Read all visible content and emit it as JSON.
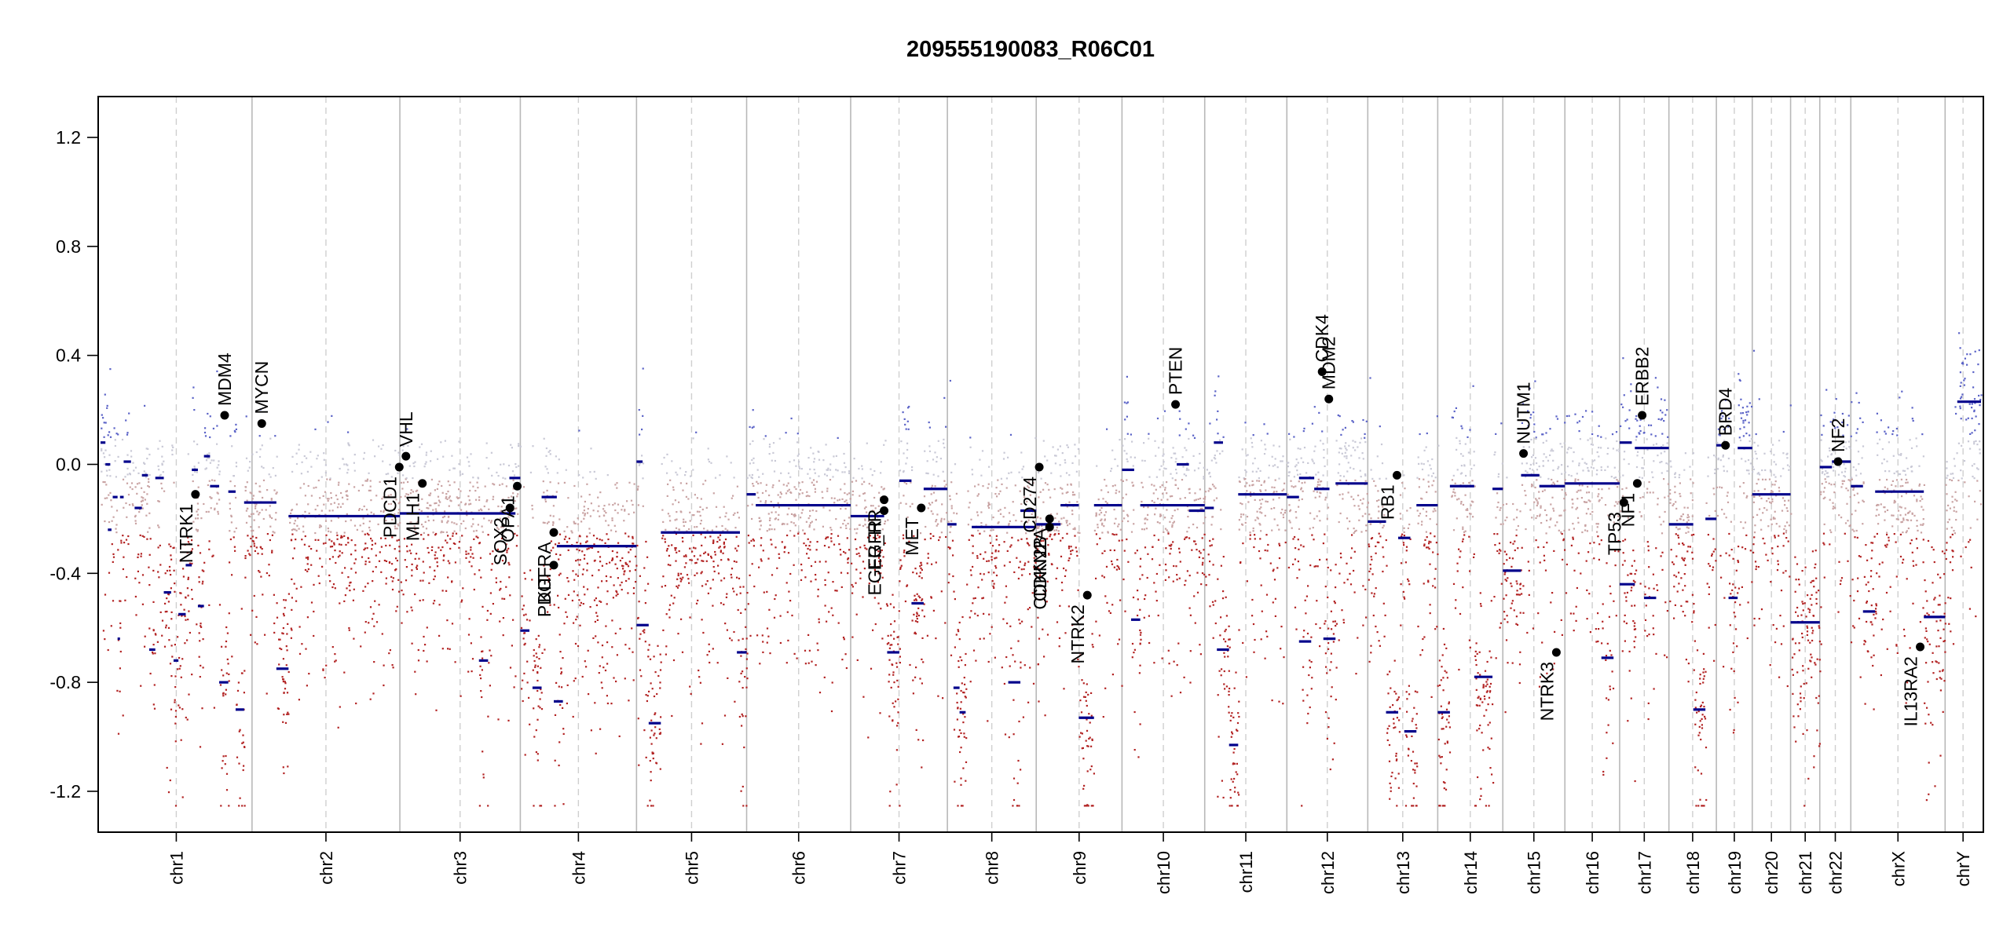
{
  "chart_data": {
    "type": "scatter",
    "title": "209555190083_R06C01",
    "xlabel": "",
    "ylabel": "",
    "ylim": [
      -1.35,
      1.35
    ],
    "yticks": [
      -1.2,
      -0.8,
      -0.4,
      0.0,
      0.4,
      0.8,
      1.2
    ],
    "ytick_labels": [
      "-1.2",
      "-0.8",
      "-0.4",
      "0.0",
      "0.4",
      "0.8",
      "1.2"
    ],
    "x_units": "genome position (Mb, cumulative)",
    "chromosomes": [
      {
        "name": "chr1",
        "length": 249
      },
      {
        "name": "chr2",
        "length": 243
      },
      {
        "name": "chr3",
        "length": 198
      },
      {
        "name": "chr4",
        "length": 191
      },
      {
        "name": "chr5",
        "length": 181
      },
      {
        "name": "chr6",
        "length": 171
      },
      {
        "name": "chr7",
        "length": 159
      },
      {
        "name": "chr8",
        "length": 146
      },
      {
        "name": "chr9",
        "length": 141
      },
      {
        "name": "chr10",
        "length": 136
      },
      {
        "name": "chr11",
        "length": 135
      },
      {
        "name": "chr12",
        "length": 133
      },
      {
        "name": "chr13",
        "length": 115
      },
      {
        "name": "chr14",
        "length": 107
      },
      {
        "name": "chr15",
        "length": 102
      },
      {
        "name": "chr16",
        "length": 90
      },
      {
        "name": "chr17",
        "length": 81
      },
      {
        "name": "chr18",
        "length": 78
      },
      {
        "name": "chr19",
        "length": 59
      },
      {
        "name": "chr20",
        "length": 63
      },
      {
        "name": "chr21",
        "length": 48
      },
      {
        "name": "chr22",
        "length": 51
      },
      {
        "name": "chrX",
        "length": 155
      },
      {
        "name": "chrY",
        "length": 59
      }
    ],
    "segments": [
      {
        "chr": "chr1",
        "start": 0,
        "end": 8,
        "value": 0.08
      },
      {
        "chr": "chr1",
        "start": 8,
        "end": 16,
        "value": 0.0
      },
      {
        "chr": "chr1",
        "start": 12,
        "end": 18,
        "value": -0.24
      },
      {
        "chr": "chr1",
        "start": 20,
        "end": 28,
        "value": -0.12
      },
      {
        "chr": "chr1",
        "start": 28,
        "end": 32,
        "value": -0.64
      },
      {
        "chr": "chr1",
        "start": 32,
        "end": 38,
        "value": -0.12
      },
      {
        "chr": "chr1",
        "start": 38,
        "end": 50,
        "value": 0.01
      },
      {
        "chr": "chr1",
        "start": 56,
        "end": 68,
        "value": -0.16
      },
      {
        "chr": "chr1",
        "start": 68,
        "end": 78,
        "value": -0.04
      },
      {
        "chr": "chr1",
        "start": 80,
        "end": 90,
        "value": -0.68
      },
      {
        "chr": "chr1",
        "start": 90,
        "end": 104,
        "value": -0.05
      },
      {
        "chr": "chr1",
        "start": 104,
        "end": 116,
        "value": -0.47
      },
      {
        "chr": "chr1",
        "start": 120,
        "end": 128,
        "value": -0.72
      },
      {
        "chr": "chr1",
        "start": 128,
        "end": 140,
        "value": -0.55
      },
      {
        "chr": "chr1",
        "start": 140,
        "end": 150,
        "value": -0.37
      },
      {
        "chr": "chr1",
        "start": 150,
        "end": 160,
        "value": -0.02
      },
      {
        "chr": "chr1",
        "start": 160,
        "end": 170,
        "value": -0.52
      },
      {
        "chr": "chr1",
        "start": 170,
        "end": 180,
        "value": 0.03
      },
      {
        "chr": "chr1",
        "start": 180,
        "end": 195,
        "value": -0.08
      },
      {
        "chr": "chr1",
        "start": 195,
        "end": 210,
        "value": -0.8
      },
      {
        "chr": "chr1",
        "start": 210,
        "end": 222,
        "value": -0.1
      },
      {
        "chr": "chr1",
        "start": 222,
        "end": 236,
        "value": -0.9
      },
      {
        "chr": "chr1",
        "start": 236,
        "end": 249,
        "value": -0.14
      },
      {
        "chr": "chr2",
        "start": 0,
        "end": 40,
        "value": -0.14
      },
      {
        "chr": "chr2",
        "start": 40,
        "end": 60,
        "value": -0.75
      },
      {
        "chr": "chr2",
        "start": 60,
        "end": 243,
        "value": -0.19
      },
      {
        "chr": "chr3",
        "start": 0,
        "end": 190,
        "value": -0.18
      },
      {
        "chr": "chr3",
        "start": 130,
        "end": 145,
        "value": -0.72
      },
      {
        "chr": "chr3",
        "start": 180,
        "end": 198,
        "value": -0.05
      },
      {
        "chr": "chr4",
        "start": 0,
        "end": 15,
        "value": -0.61
      },
      {
        "chr": "chr4",
        "start": 20,
        "end": 35,
        "value": -0.82
      },
      {
        "chr": "chr4",
        "start": 35,
        "end": 60,
        "value": -0.12
      },
      {
        "chr": "chr4",
        "start": 55,
        "end": 70,
        "value": -0.87
      },
      {
        "chr": "chr4",
        "start": 60,
        "end": 191,
        "value": -0.3
      },
      {
        "chr": "chr5",
        "start": 0,
        "end": 10,
        "value": 0.01
      },
      {
        "chr": "chr5",
        "start": 0,
        "end": 20,
        "value": -0.59
      },
      {
        "chr": "chr5",
        "start": 20,
        "end": 40,
        "value": -0.95
      },
      {
        "chr": "chr5",
        "start": 40,
        "end": 170,
        "value": -0.25
      },
      {
        "chr": "chr5",
        "start": 165,
        "end": 181,
        "value": -0.69
      },
      {
        "chr": "chr6",
        "start": 0,
        "end": 15,
        "value": -0.11
      },
      {
        "chr": "chr6",
        "start": 15,
        "end": 171,
        "value": -0.15
      },
      {
        "chr": "chr7",
        "start": 0,
        "end": 55,
        "value": -0.19
      },
      {
        "chr": "chr7",
        "start": 60,
        "end": 80,
        "value": -0.69
      },
      {
        "chr": "chr7",
        "start": 80,
        "end": 100,
        "value": -0.06
      },
      {
        "chr": "chr7",
        "start": 100,
        "end": 120,
        "value": -0.51
      },
      {
        "chr": "chr7",
        "start": 120,
        "end": 159,
        "value": -0.09
      },
      {
        "chr": "chr8",
        "start": 0,
        "end": 15,
        "value": -0.22
      },
      {
        "chr": "chr8",
        "start": 10,
        "end": 20,
        "value": -0.82
      },
      {
        "chr": "chr8",
        "start": 20,
        "end": 30,
        "value": -0.91
      },
      {
        "chr": "chr8",
        "start": 40,
        "end": 146,
        "value": -0.23
      },
      {
        "chr": "chr8",
        "start": 100,
        "end": 120,
        "value": -0.8
      },
      {
        "chr": "chr8",
        "start": 120,
        "end": 146,
        "value": -0.17
      },
      {
        "chr": "chr9",
        "start": 0,
        "end": 40,
        "value": -0.22
      },
      {
        "chr": "chr9",
        "start": 40,
        "end": 70,
        "value": -0.15
      },
      {
        "chr": "chr9",
        "start": 70,
        "end": 95,
        "value": -0.93
      },
      {
        "chr": "chr9",
        "start": 95,
        "end": 141,
        "value": -0.15
      },
      {
        "chr": "chr10",
        "start": 0,
        "end": 20,
        "value": -0.02
      },
      {
        "chr": "chr10",
        "start": 15,
        "end": 30,
        "value": -0.57
      },
      {
        "chr": "chr10",
        "start": 30,
        "end": 136,
        "value": -0.15
      },
      {
        "chr": "chr10",
        "start": 90,
        "end": 110,
        "value": 0.0
      },
      {
        "chr": "chr10",
        "start": 110,
        "end": 136,
        "value": -0.17
      },
      {
        "chr": "chr11",
        "start": 0,
        "end": 15,
        "value": -0.16
      },
      {
        "chr": "chr11",
        "start": 15,
        "end": 30,
        "value": 0.08
      },
      {
        "chr": "chr11",
        "start": 20,
        "end": 40,
        "value": -0.68
      },
      {
        "chr": "chr11",
        "start": 40,
        "end": 55,
        "value": -1.03
      },
      {
        "chr": "chr11",
        "start": 55,
        "end": 135,
        "value": -0.11
      },
      {
        "chr": "chr12",
        "start": 0,
        "end": 20,
        "value": -0.12
      },
      {
        "chr": "chr12",
        "start": 20,
        "end": 40,
        "value": -0.65
      },
      {
        "chr": "chr12",
        "start": 20,
        "end": 45,
        "value": -0.05
      },
      {
        "chr": "chr12",
        "start": 45,
        "end": 70,
        "value": -0.09
      },
      {
        "chr": "chr12",
        "start": 60,
        "end": 80,
        "value": -0.64
      },
      {
        "chr": "chr12",
        "start": 80,
        "end": 133,
        "value": -0.07
      },
      {
        "chr": "chr13",
        "start": 0,
        "end": 30,
        "value": -0.21
      },
      {
        "chr": "chr13",
        "start": 30,
        "end": 50,
        "value": -0.91
      },
      {
        "chr": "chr13",
        "start": 50,
        "end": 70,
        "value": -0.27
      },
      {
        "chr": "chr13",
        "start": 60,
        "end": 80,
        "value": -0.98
      },
      {
        "chr": "chr13",
        "start": 80,
        "end": 115,
        "value": -0.15
      },
      {
        "chr": "chr14",
        "start": 0,
        "end": 20,
        "value": -0.91
      },
      {
        "chr": "chr14",
        "start": 20,
        "end": 60,
        "value": -0.08
      },
      {
        "chr": "chr14",
        "start": 60,
        "end": 90,
        "value": -0.78
      },
      {
        "chr": "chr14",
        "start": 90,
        "end": 107,
        "value": -0.09
      },
      {
        "chr": "chr15",
        "start": 0,
        "end": 30,
        "value": -0.39
      },
      {
        "chr": "chr15",
        "start": 30,
        "end": 60,
        "value": -0.04
      },
      {
        "chr": "chr15",
        "start": 60,
        "end": 102,
        "value": -0.08
      },
      {
        "chr": "chr16",
        "start": 0,
        "end": 90,
        "value": -0.07
      },
      {
        "chr": "chr16",
        "start": 60,
        "end": 80,
        "value": -0.71
      },
      {
        "chr": "chr17",
        "start": 0,
        "end": 25,
        "value": -0.44
      },
      {
        "chr": "chr17",
        "start": 0,
        "end": 20,
        "value": 0.08
      },
      {
        "chr": "chr17",
        "start": 25,
        "end": 81,
        "value": 0.06
      },
      {
        "chr": "chr17",
        "start": 40,
        "end": 60,
        "value": -0.49
      },
      {
        "chr": "chr18",
        "start": 0,
        "end": 40,
        "value": -0.22
      },
      {
        "chr": "chr18",
        "start": 40,
        "end": 60,
        "value": -0.9
      },
      {
        "chr": "chr18",
        "start": 60,
        "end": 78,
        "value": -0.2
      },
      {
        "chr": "chr19",
        "start": 0,
        "end": 20,
        "value": 0.07
      },
      {
        "chr": "chr19",
        "start": 20,
        "end": 35,
        "value": -0.49
      },
      {
        "chr": "chr19",
        "start": 35,
        "end": 59,
        "value": 0.06
      },
      {
        "chr": "chr20",
        "start": 0,
        "end": 63,
        "value": -0.11
      },
      {
        "chr": "chr21",
        "start": 0,
        "end": 48,
        "value": -0.58
      },
      {
        "chr": "chr22",
        "start": 0,
        "end": 20,
        "value": -0.01
      },
      {
        "chr": "chr22",
        "start": 20,
        "end": 51,
        "value": 0.01
      },
      {
        "chr": "chrX",
        "start": 0,
        "end": 20,
        "value": -0.08
      },
      {
        "chr": "chrX",
        "start": 20,
        "end": 40,
        "value": -0.54
      },
      {
        "chr": "chrX",
        "start": 40,
        "end": 120,
        "value": -0.1
      },
      {
        "chr": "chrX",
        "start": 120,
        "end": 155,
        "value": -0.56
      },
      {
        "chr": "chrY",
        "start": 20,
        "end": 59,
        "value": 0.23
      }
    ],
    "genes": [
      {
        "name": "NTRK1",
        "chr": "chr1",
        "pos": 156,
        "value": -0.11,
        "label_side": "below"
      },
      {
        "name": "MDM4",
        "chr": "chr1",
        "pos": 204,
        "value": 0.18,
        "label_side": "above"
      },
      {
        "name": "MYCN",
        "chr": "chr2",
        "pos": 16,
        "value": 0.15,
        "label_side": "above"
      },
      {
        "name": "PDCD1",
        "chr": "chr2",
        "pos": 242,
        "value": -0.01,
        "label_side": "below"
      },
      {
        "name": "VHL",
        "chr": "chr3",
        "pos": 10,
        "value": 0.03,
        "label_side": "above"
      },
      {
        "name": "MLH1",
        "chr": "chr3",
        "pos": 37,
        "value": -0.07,
        "label_side": "below"
      },
      {
        "name": "SOX2",
        "chr": "chr3",
        "pos": 181,
        "value": -0.16,
        "label_side": "below"
      },
      {
        "name": "OPA1",
        "chr": "chr3",
        "pos": 193,
        "value": -0.08,
        "label_side": "below"
      },
      {
        "name": "PDGFRA",
        "chr": "chr4",
        "pos": 55,
        "value": -0.25,
        "label_side": "below"
      },
      {
        "name": "KIT",
        "chr": "chr4",
        "pos": 55,
        "value": -0.37,
        "label_side": "below"
      },
      {
        "name": "EGFR",
        "chr": "chr7",
        "pos": 55,
        "value": -0.17,
        "label_side": "below"
      },
      {
        "name": "EGFR_A",
        "chr": "chr7",
        "pos": 55,
        "value": -0.13,
        "label_side": "below"
      },
      {
        "name": "MET",
        "chr": "chr7",
        "pos": 116,
        "value": -0.16,
        "label_side": "below"
      },
      {
        "name": "CD274",
        "chr": "chr9",
        "pos": 5,
        "value": -0.01,
        "label_side": "below"
      },
      {
        "name": "CDKN2A",
        "chr": "chr9",
        "pos": 22,
        "value": -0.2,
        "label_side": "below"
      },
      {
        "name": "CDKN2B",
        "chr": "chr9",
        "pos": 22,
        "value": -0.23,
        "label_side": "below"
      },
      {
        "name": "NTRK2",
        "chr": "chr9",
        "pos": 84,
        "value": -0.48,
        "label_side": "below"
      },
      {
        "name": "PTEN",
        "chr": "chr10",
        "pos": 88,
        "value": 0.22,
        "label_side": "above"
      },
      {
        "name": "CDK4",
        "chr": "chr12",
        "pos": 58,
        "value": 0.34,
        "label_side": "above"
      },
      {
        "name": "MDM2",
        "chr": "chr12",
        "pos": 69,
        "value": 0.24,
        "label_side": "above"
      },
      {
        "name": "RB1",
        "chr": "chr13",
        "pos": 48,
        "value": -0.04,
        "label_side": "below"
      },
      {
        "name": "NUTM1",
        "chr": "chr15",
        "pos": 34,
        "value": 0.04,
        "label_side": "above"
      },
      {
        "name": "NTRK3",
        "chr": "chr15",
        "pos": 88,
        "value": -0.69,
        "label_side": "below"
      },
      {
        "name": "TP53",
        "chr": "chr17",
        "pos": 7,
        "value": -0.14,
        "label_side": "below"
      },
      {
        "name": "NF1",
        "chr": "chr17",
        "pos": 29,
        "value": -0.07,
        "label_side": "below"
      },
      {
        "name": "ERBB2",
        "chr": "chr17",
        "pos": 37,
        "value": 0.18,
        "label_side": "above"
      },
      {
        "name": "BRD4",
        "chr": "chr19",
        "pos": 15,
        "value": 0.07,
        "label_side": "above"
      },
      {
        "name": "NF2",
        "chr": "chr22",
        "pos": 30,
        "value": 0.01,
        "label_side": "above"
      },
      {
        "name": "IL13RA2",
        "chrom": "chrX",
        "chr": "chrX",
        "pos": 114,
        "value": -0.67,
        "label_side": "below"
      }
    ],
    "gene_label_text": {
      "EGFR_A": "EGFR_HR"
    }
  }
}
